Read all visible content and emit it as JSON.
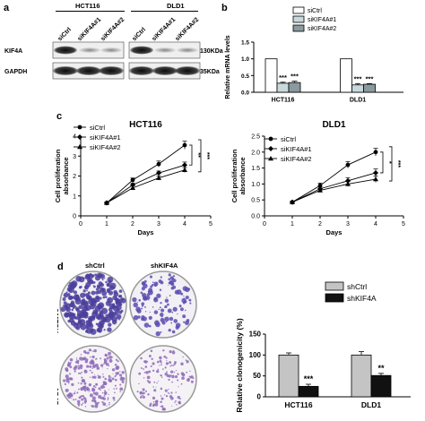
{
  "panels": {
    "a": "a",
    "b": "b",
    "c": "c",
    "d": "d"
  },
  "panel_a": {
    "group1": "HCT116",
    "group2": "DLD1",
    "lanes": [
      "siCtrl",
      "siKIF4A#1",
      "siKIF4A#2"
    ],
    "rows": [
      {
        "protein": "KIF4A",
        "size": "130KDa"
      },
      {
        "protein": "GAPDH",
        "size": "35KDa"
      }
    ]
  },
  "panel_d_images": {
    "columns": [
      "shCtrl",
      "shKIF4A"
    ],
    "rows": [
      "HCT116",
      "DLD1"
    ]
  },
  "chart_data": [
    {
      "panel": "b",
      "type": "bar",
      "ylabel": "Relative mRNA levels",
      "ylim": [
        0,
        1.5
      ],
      "yticks": [
        "0.0",
        "0.5",
        "1.0",
        "1.5"
      ],
      "categories": [
        "HCT116",
        "DLD1"
      ],
      "series": [
        {
          "name": "siCtrl",
          "values": [
            1.0,
            1.0
          ],
          "errors": [
            0,
            0
          ],
          "color": "#ffffff"
        },
        {
          "name": "siKIF4A#1",
          "values": [
            0.27,
            0.22
          ],
          "errors": [
            0.03,
            0.04
          ],
          "color": "#c9d8dc"
        },
        {
          "name": "siKIF4A#2",
          "values": [
            0.29,
            0.24
          ],
          "errors": [
            0.04,
            0.02
          ],
          "color": "#8a9a9e"
        }
      ],
      "significance": [
        "***",
        "***",
        "***",
        "***"
      ]
    },
    {
      "panel": "c1",
      "type": "line",
      "title": "HCT116",
      "xlabel": "Days",
      "ylabel": "Cell proliferation absorbance",
      "xlim": [
        0,
        5
      ],
      "ylim": [
        0,
        4
      ],
      "x": [
        1,
        2,
        3,
        4
      ],
      "xticks": [
        "0",
        "1",
        "2",
        "3",
        "4",
        "5"
      ],
      "yticks": [
        "0",
        "1",
        "2",
        "3",
        "4"
      ],
      "series": [
        {
          "name": "siCtrl",
          "marker": "circle",
          "values": [
            0.65,
            1.8,
            2.6,
            3.55
          ],
          "errors": [
            0.05,
            0.1,
            0.15,
            0.2
          ]
        },
        {
          "name": "siKIF4A#1",
          "marker": "diamond",
          "values": [
            0.65,
            1.55,
            2.15,
            2.55
          ],
          "errors": [
            0.05,
            0.1,
            0.1,
            0.15
          ]
        },
        {
          "name": "siKIF4A#2",
          "marker": "triangle",
          "values": [
            0.65,
            1.4,
            1.9,
            2.3
          ],
          "errors": [
            0.05,
            0.1,
            0.1,
            0.12
          ]
        }
      ],
      "significance": [
        "**",
        "***"
      ]
    },
    {
      "panel": "c2",
      "type": "line",
      "title": "DLD1",
      "xlabel": "Days",
      "ylabel": "Cell proliferation absorbance",
      "xlim": [
        0,
        5
      ],
      "ylim": [
        0,
        2.5
      ],
      "x": [
        1,
        2,
        3,
        4
      ],
      "xticks": [
        "0",
        "1",
        "2",
        "3",
        "4",
        "5"
      ],
      "yticks": [
        "0.0",
        "0.5",
        "1.0",
        "1.5",
        "2.0",
        "2.5"
      ],
      "series": [
        {
          "name": "siCtrl",
          "marker": "circle",
          "values": [
            0.43,
            0.95,
            1.6,
            2.0
          ],
          "errors": [
            0.03,
            0.08,
            0.1,
            0.12
          ]
        },
        {
          "name": "siKIF4A#1",
          "marker": "diamond",
          "values": [
            0.43,
            0.85,
            1.1,
            1.35
          ],
          "errors": [
            0.03,
            0.06,
            0.1,
            0.12
          ]
        },
        {
          "name": "siKIF4A#2",
          "marker": "triangle",
          "values": [
            0.43,
            0.8,
            1.0,
            1.15
          ],
          "errors": [
            0.03,
            0.06,
            0.08,
            0.1
          ]
        }
      ],
      "significance": [
        "*",
        "***"
      ]
    },
    {
      "panel": "d",
      "type": "bar",
      "ylabel": "Relative clonogenicity (%)",
      "ylim": [
        0,
        150
      ],
      "yticks": [
        "0",
        "50",
        "100",
        "150"
      ],
      "categories": [
        "HCT116",
        "DLD1"
      ],
      "series": [
        {
          "name": "shCtrl",
          "values": [
            100,
            100
          ],
          "errors": [
            5,
            8
          ],
          "color": "#c4c4c4"
        },
        {
          "name": "shKIF4A",
          "values": [
            25,
            51
          ],
          "errors": [
            5,
            5
          ],
          "color": "#111111"
        }
      ],
      "significance": [
        "***",
        "**"
      ]
    }
  ]
}
